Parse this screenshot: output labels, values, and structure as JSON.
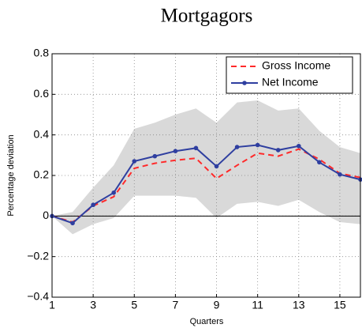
{
  "chart_data": {
    "type": "line",
    "title": "Mortgagors",
    "xlabel": "Quarters",
    "ylabel": "Percentage deviation",
    "x": [
      1,
      2,
      3,
      4,
      5,
      6,
      7,
      8,
      9,
      10,
      11,
      12,
      13,
      14,
      15,
      16
    ],
    "series": [
      {
        "name": "Gross Income",
        "color": "#ff2a2a",
        "style": "dashed",
        "marker": false,
        "values": [
          0,
          -0.03,
          0.05,
          0.095,
          0.235,
          0.26,
          0.275,
          0.285,
          0.185,
          0.25,
          0.31,
          0.295,
          0.33,
          0.28,
          0.21,
          0.19
        ]
      },
      {
        "name": "Net Income",
        "color": "#2f3fa0",
        "style": "solid",
        "marker": true,
        "values": [
          0,
          -0.035,
          0.055,
          0.115,
          0.27,
          0.295,
          0.32,
          0.335,
          0.245,
          0.34,
          0.35,
          0.325,
          0.345,
          0.265,
          0.205,
          0.18
        ]
      }
    ],
    "band": {
      "color": "#d9d9d9",
      "upper": [
        0,
        0.02,
        0.14,
        0.25,
        0.43,
        0.46,
        0.5,
        0.53,
        0.46,
        0.56,
        0.57,
        0.52,
        0.53,
        0.42,
        0.34,
        0.31
      ],
      "lower": [
        0,
        -0.09,
        -0.04,
        -0.01,
        0.1,
        0.1,
        0.1,
        0.09,
        -0.01,
        0.06,
        0.07,
        0.05,
        0.08,
        0.02,
        -0.03,
        -0.04
      ]
    },
    "reference_line": 0,
    "xlim": [
      1,
      16
    ],
    "xticks": [
      1,
      3,
      5,
      7,
      9,
      11,
      13,
      15
    ],
    "ylim": [
      -0.4,
      0.8
    ],
    "yticks": [
      {
        "value": -0.4,
        "label": "−0.4"
      },
      {
        "value": -0.2,
        "label": "−0.2"
      },
      0,
      0.2,
      0.4,
      0.6,
      0.8
    ],
    "grid": true,
    "legend": "upper right"
  }
}
